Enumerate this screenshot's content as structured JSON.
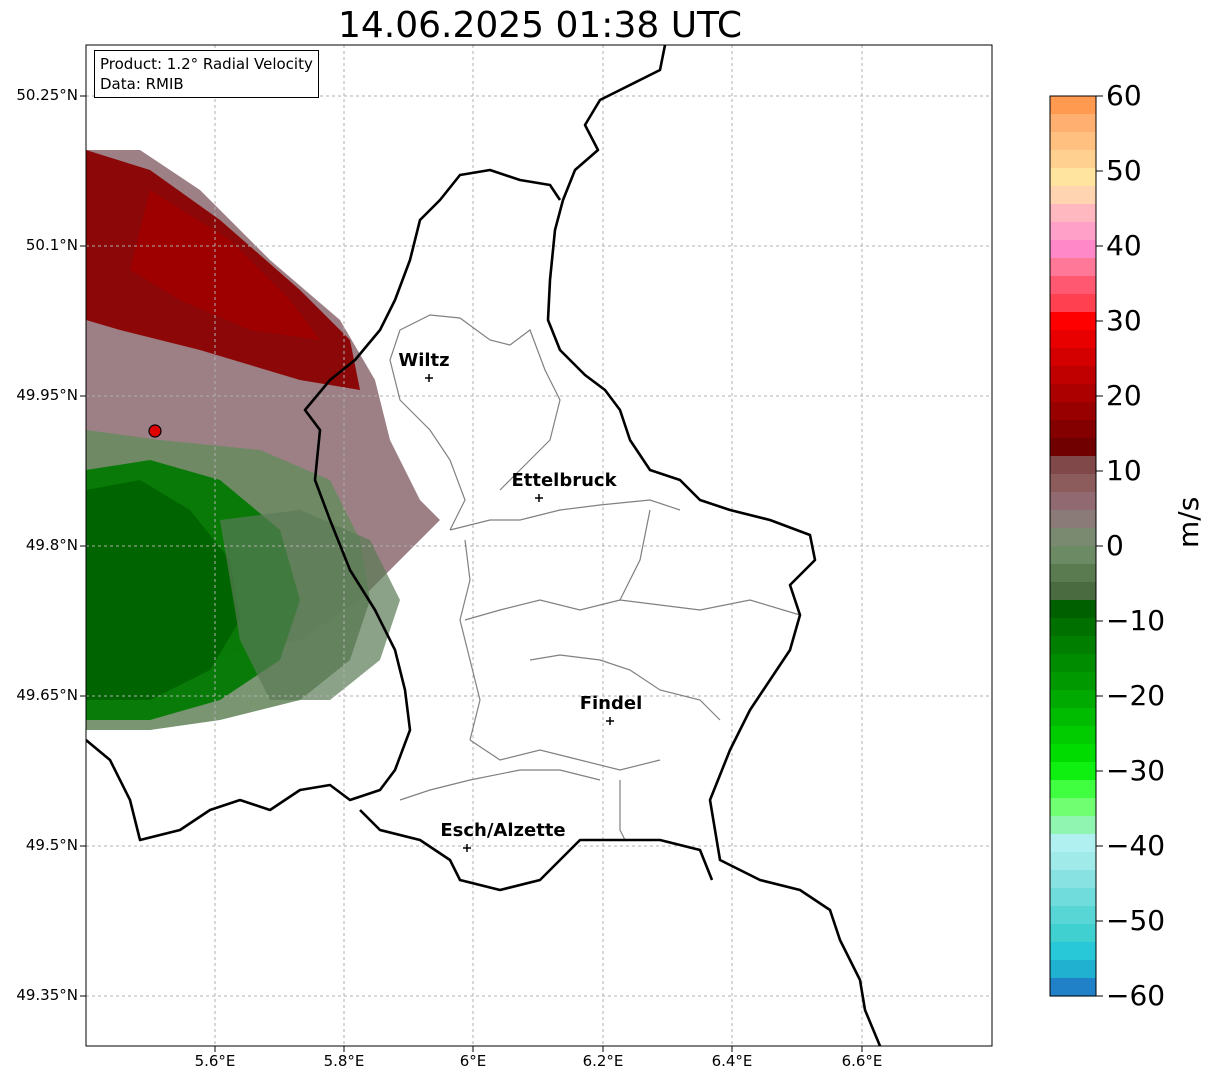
{
  "title": "14.06.2025 01:38 UTC",
  "info_box": {
    "product": "Product: 1.2° Radial Velocity",
    "data": "Data: RMIB"
  },
  "latitude_ticks": [
    "50.25°N",
    "50.1°N",
    "49.95°N",
    "49.8°N",
    "49.65°N",
    "49.5°N",
    "49.35°N"
  ],
  "longitude_ticks": [
    "5.6°E",
    "5.8°E",
    "6°E",
    "6.2°E",
    "6.4°E",
    "6.6°E"
  ],
  "cities": [
    {
      "name": "Wiltz",
      "lon": 5.93,
      "lat": 49.967
    },
    {
      "name": "Ettelbruck",
      "lon": 6.1,
      "lat": 49.847
    },
    {
      "name": "Findel",
      "lon": 6.21,
      "lat": 49.627
    },
    {
      "name": "Esch/Alzette",
      "lon": 5.99,
      "lat": 49.5
    }
  ],
  "radar_site": {
    "lon": 5.505,
    "lat": 49.914,
    "color": "#e00000"
  },
  "colorbar": {
    "unit": "m/s",
    "min": -60,
    "max": 60,
    "ticks": [
      "60",
      "50",
      "40",
      "30",
      "20",
      "10",
      "0",
      "−10",
      "−20",
      "−30",
      "−40",
      "−50",
      "−60"
    ],
    "colors_top_to_bottom": [
      "#ff9a50",
      "#ffb070",
      "#ffc080",
      "#ffd090",
      "#ffe4a0",
      "#ffd4b0",
      "#ffb8c0",
      "#ffa0c8",
      "#ff88c8",
      "#ff7898",
      "#ff5870",
      "#ff4050",
      "#ff0000",
      "#e80000",
      "#d40000",
      "#c00000",
      "#ac0000",
      "#980000",
      "#840000",
      "#700000",
      "#804848",
      "#8c5c5c",
      "#906a70",
      "#8a7a78",
      "#7a8a70",
      "#6c8a64",
      "#5a7a50",
      "#4a6a40",
      "#006000",
      "#007000",
      "#007e00",
      "#008c00",
      "#009a00",
      "#00aa00",
      "#00bc00",
      "#00cc00",
      "#00dc00",
      "#10f010",
      "#40ff40",
      "#70ff70",
      "#90f5b0",
      "#b0f0f0",
      "#a0eaea",
      "#88e2e2",
      "#70dcdc",
      "#58d6d6",
      "#40d0d0",
      "#28c8d8",
      "#20b0d0",
      "#2080c8"
    ]
  },
  "colors": {
    "country_border": "#000000",
    "admin_border": "#808080",
    "grid": "#b0b0b0"
  }
}
